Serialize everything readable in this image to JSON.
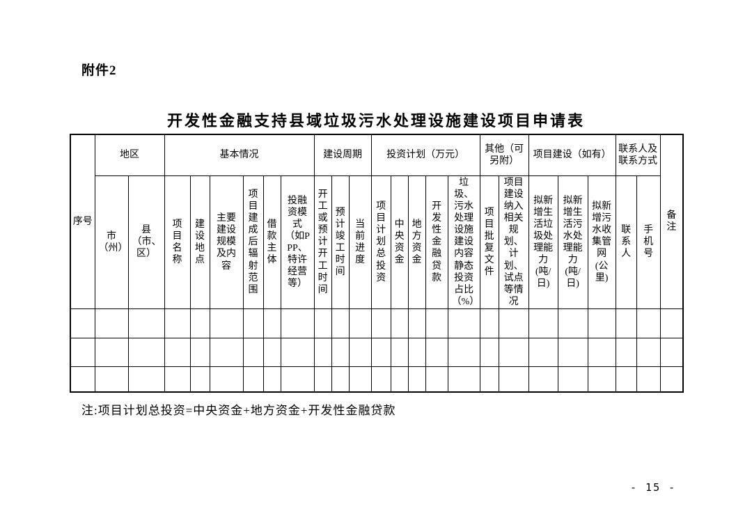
{
  "page": {
    "attachment_label": "附件2",
    "note": "注:项目计划总投资=中央资金+地方资金+开发性金融贷款",
    "page_number": "- 15 -"
  },
  "table": {
    "title": "开发性金融支持县域垃圾污水处理设施建设项目申请表",
    "corner_first": {
      "label": "序号"
    },
    "corner_last": {
      "label": "备注"
    },
    "groups": [
      {
        "label": "地区",
        "columns": [
          "市（州）",
          "县（市、区）"
        ]
      },
      {
        "label": "基本情况",
        "columns": [
          "项目名称",
          "建设地点",
          "主要建设规模及内容",
          "项目建成后辐射范围",
          "借款主体",
          "投融资模式（如PPP、特许经营等）"
        ]
      },
      {
        "label": "建设周期",
        "columns": [
          "开工或预计开工时间",
          "预计竣工时间",
          "当前进度"
        ]
      },
      {
        "label": "投资计划（万元）",
        "columns": [
          "项目计划总投资",
          "中央资金",
          "地方资金",
          "开发性金融贷款",
          "垃圾、污水处理设施建设内容静态投资占比（%）"
        ]
      },
      {
        "label": "其他（可另附）",
        "columns": [
          "项目批复文件",
          "项目建设纳入相关规划、计划、试点等情况"
        ]
      },
      {
        "label": "项目建设（如有）",
        "columns": [
          "拟新增生活垃圾处理能力(吨/日)",
          "拟新增生活污水处理能力(吨/日)",
          "拟新增污水收集管网(公里)"
        ]
      },
      {
        "label": "联系人及联系方式",
        "columns": [
          "联系人",
          "手机号"
        ]
      }
    ],
    "empty_row_count": 3
  }
}
